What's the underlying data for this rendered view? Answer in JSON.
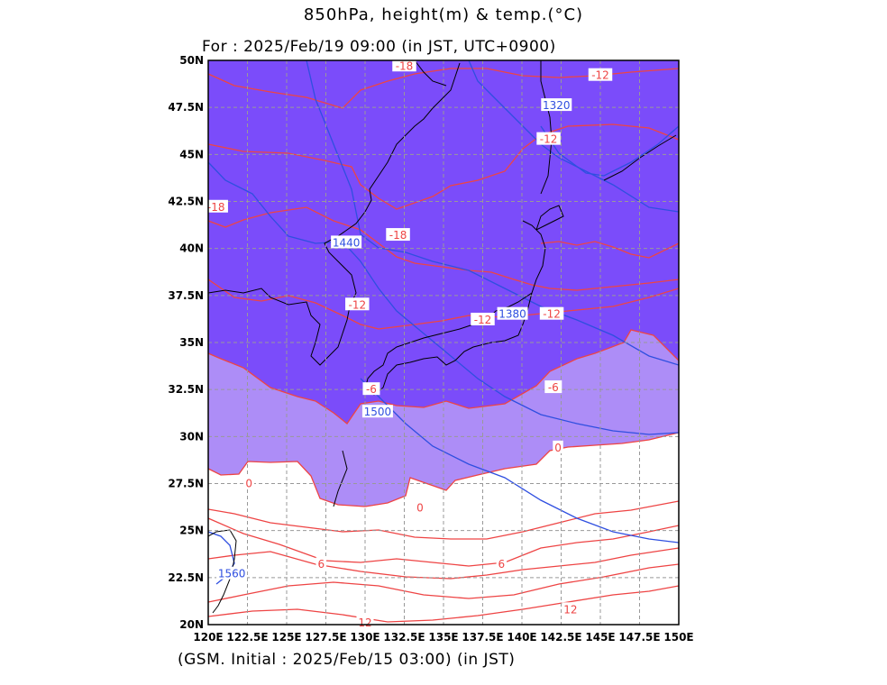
{
  "header": {
    "title": "850hPa, height(m) & temp.(°C)",
    "valid": "For : 2025/Feb/19 09:00 (in JST, UTC+0900)"
  },
  "footer": {
    "initial": "(GSM. Initial : 2025/Feb/15 03:00) (in JST)"
  },
  "chart_data": {
    "type": "map",
    "projection": "lat-lon",
    "xlim": [
      120,
      150
    ],
    "ylim": [
      20,
      50
    ],
    "grid": true,
    "x_ticks": [
      "120E",
      "122.5E",
      "125E",
      "127.5E",
      "130E",
      "132.5E",
      "135E",
      "137.5E",
      "140E",
      "142.5E",
      "145E",
      "147.5E",
      "150E"
    ],
    "y_ticks": [
      "20N",
      "22.5N",
      "25N",
      "27.5N",
      "30N",
      "32.5N",
      "35N",
      "37.5N",
      "40N",
      "42.5N",
      "45N",
      "47.5N",
      "50N"
    ],
    "colors": {
      "below_minus6": "#7b4cfa",
      "minus6_to_0": "#ad8df7",
      "above_0": "#ffffff",
      "temp_contour": "#ee4444",
      "height_contour": "#2f4fe0",
      "coast": "#000000"
    },
    "temperature_contour_labels": [
      {
        "text": "-18",
        "lon": 132.5,
        "lat": 49.7
      },
      {
        "text": "-12",
        "lon": 145.0,
        "lat": 49.2
      },
      {
        "text": "-12",
        "lon": 141.7,
        "lat": 45.8
      },
      {
        "text": "-18",
        "lon": 120.5,
        "lat": 42.2
      },
      {
        "text": "-18",
        "lon": 132.1,
        "lat": 40.7
      },
      {
        "text": "-12",
        "lon": 129.5,
        "lat": 37.0
      },
      {
        "text": "-12",
        "lon": 141.9,
        "lat": 36.5
      },
      {
        "text": "-12",
        "lon": 137.5,
        "lat": 36.2
      },
      {
        "text": "-6",
        "lon": 130.4,
        "lat": 32.5
      },
      {
        "text": "-6",
        "lon": 142.0,
        "lat": 32.6
      },
      {
        "text": "0",
        "lon": 142.3,
        "lat": 29.4
      },
      {
        "text": "0",
        "lon": 122.6,
        "lat": 27.5
      },
      {
        "text": "0",
        "lon": 133.5,
        "lat": 26.2
      },
      {
        "text": "6",
        "lon": 127.2,
        "lat": 23.2
      },
      {
        "text": "6",
        "lon": 138.7,
        "lat": 23.2
      },
      {
        "text": "12",
        "lon": 130.0,
        "lat": 20.1
      },
      {
        "text": "12",
        "lon": 143.1,
        "lat": 20.8
      }
    ],
    "height_contour_labels": [
      {
        "text": "1320",
        "lon": 142.2,
        "lat": 47.6
      },
      {
        "text": "1440",
        "lon": 128.8,
        "lat": 40.3
      },
      {
        "text": "1380",
        "lon": 139.4,
        "lat": 36.5
      },
      {
        "text": "1500",
        "lon": 130.8,
        "lat": 31.3
      },
      {
        "text": "1560",
        "lon": 121.5,
        "lat": 22.7
      }
    ]
  }
}
